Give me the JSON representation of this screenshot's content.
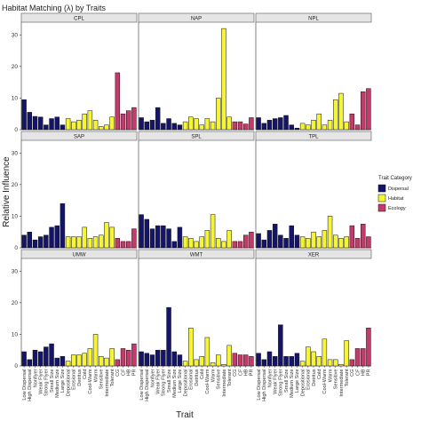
{
  "chart_data": {
    "type": "bar",
    "title": "Habitat Matching (λ) by Traits",
    "xlabel": "Trait",
    "ylabel": "Relative Influence",
    "ylim": [
      0,
      34
    ],
    "yticks": [
      0,
      10,
      20,
      30
    ],
    "grid": false,
    "legend": {
      "title": "Trait Category",
      "position": "right",
      "entries": [
        {
          "name": "Dispersal",
          "color": "#14146b"
        },
        {
          "name": "Habitat",
          "color": "#f5f533"
        },
        {
          "name": "Ecology",
          "color": "#c23b6b"
        }
      ]
    },
    "categories": [
      "Low Dispersal",
      "High Dispersal",
      "Nonflyer",
      "Weak Flyer",
      "Strong Flyer",
      "Small Size",
      "Medium Size",
      "Large Size",
      "Depositional",
      "Erosional",
      "Detritus",
      "Cold",
      "Cool-Warm",
      "Warm",
      "Sensitive",
      "Intermediate",
      "Tolerant",
      "CG",
      "CF",
      "HB",
      "PR"
    ],
    "category_groups": [
      "Dispersal",
      "Dispersal",
      "Dispersal",
      "Dispersal",
      "Dispersal",
      "Dispersal",
      "Dispersal",
      "Dispersal",
      "Habitat",
      "Habitat",
      "Habitat",
      "Habitat",
      "Habitat",
      "Habitat",
      "Habitat",
      "Habitat",
      "Habitat",
      "Ecology",
      "Ecology",
      "Ecology",
      "Ecology"
    ],
    "panels": [
      {
        "name": "CPL",
        "values": [
          9.5,
          5.5,
          4.2,
          4.0,
          1.5,
          3.5,
          4.0,
          1.5,
          3.5,
          2.5,
          3.0,
          5.0,
          6.0,
          3.0,
          1.0,
          1.5,
          4.0,
          18.0,
          5.0,
          6.0,
          7.0
        ]
      },
      {
        "name": "NAP",
        "values": [
          3.8,
          2.5,
          3.0,
          7.0,
          2.0,
          3.5,
          2.0,
          1.5,
          2.5,
          4.0,
          3.5,
          1.5,
          3.5,
          2.5,
          10.0,
          32.0,
          4.0,
          2.5,
          2.5,
          1.8,
          3.8
        ]
      },
      {
        "name": "NPL",
        "values": [
          3.8,
          2.0,
          3.0,
          3.5,
          3.8,
          4.5,
          1.5,
          0.5,
          2.0,
          1.5,
          3.0,
          5.0,
          1.5,
          3.0,
          9.5,
          11.5,
          2.5,
          5.0,
          1.5,
          12.0,
          13.0
        ]
      },
      {
        "name": "SAP",
        "values": [
          4.0,
          5.0,
          2.5,
          3.5,
          4.0,
          6.5,
          7.0,
          14.0,
          3.5,
          3.5,
          3.5,
          6.5,
          3.0,
          3.5,
          4.0,
          8.0,
          6.5,
          3.0,
          2.0,
          2.0,
          6.0
        ]
      },
      {
        "name": "SPL",
        "values": [
          10.5,
          9.0,
          6.0,
          7.0,
          7.0,
          6.0,
          2.0,
          6.5,
          3.5,
          3.0,
          2.0,
          3.5,
          5.5,
          10.5,
          3.0,
          2.0,
          5.5,
          2.0,
          2.0,
          4.0,
          5.0
        ]
      },
      {
        "name": "TPL",
        "values": [
          4.5,
          2.5,
          5.5,
          7.5,
          4.0,
          3.0,
          7.0,
          4.0,
          3.5,
          3.0,
          5.0,
          3.5,
          5.5,
          10.0,
          4.0,
          3.0,
          3.5,
          7.0,
          3.0,
          7.5,
          3.5
        ]
      },
      {
        "name": "UMW",
        "values": [
          4.5,
          2.0,
          5.0,
          4.5,
          6.0,
          7.0,
          2.5,
          3.0,
          1.5,
          3.5,
          3.5,
          4.0,
          5.5,
          10.0,
          3.0,
          2.5,
          5.5,
          2.0,
          5.5,
          5.0,
          7.0
        ]
      },
      {
        "name": "WMT",
        "values": [
          4.5,
          4.0,
          3.5,
          5.0,
          5.0,
          18.5,
          4.5,
          3.5,
          1.5,
          12.0,
          2.0,
          3.0,
          9.0,
          1.0,
          3.5,
          0.5,
          6.5,
          4.0,
          3.5,
          3.5,
          3.0
        ]
      },
      {
        "name": "XER",
        "values": [
          4.0,
          2.0,
          4.5,
          3.0,
          13.0,
          3.0,
          3.0,
          4.0,
          1.5,
          6.0,
          4.5,
          3.0,
          8.5,
          2.0,
          2.0,
          0.5,
          8.0,
          2.0,
          5.5,
          5.5,
          12.0
        ]
      }
    ]
  }
}
